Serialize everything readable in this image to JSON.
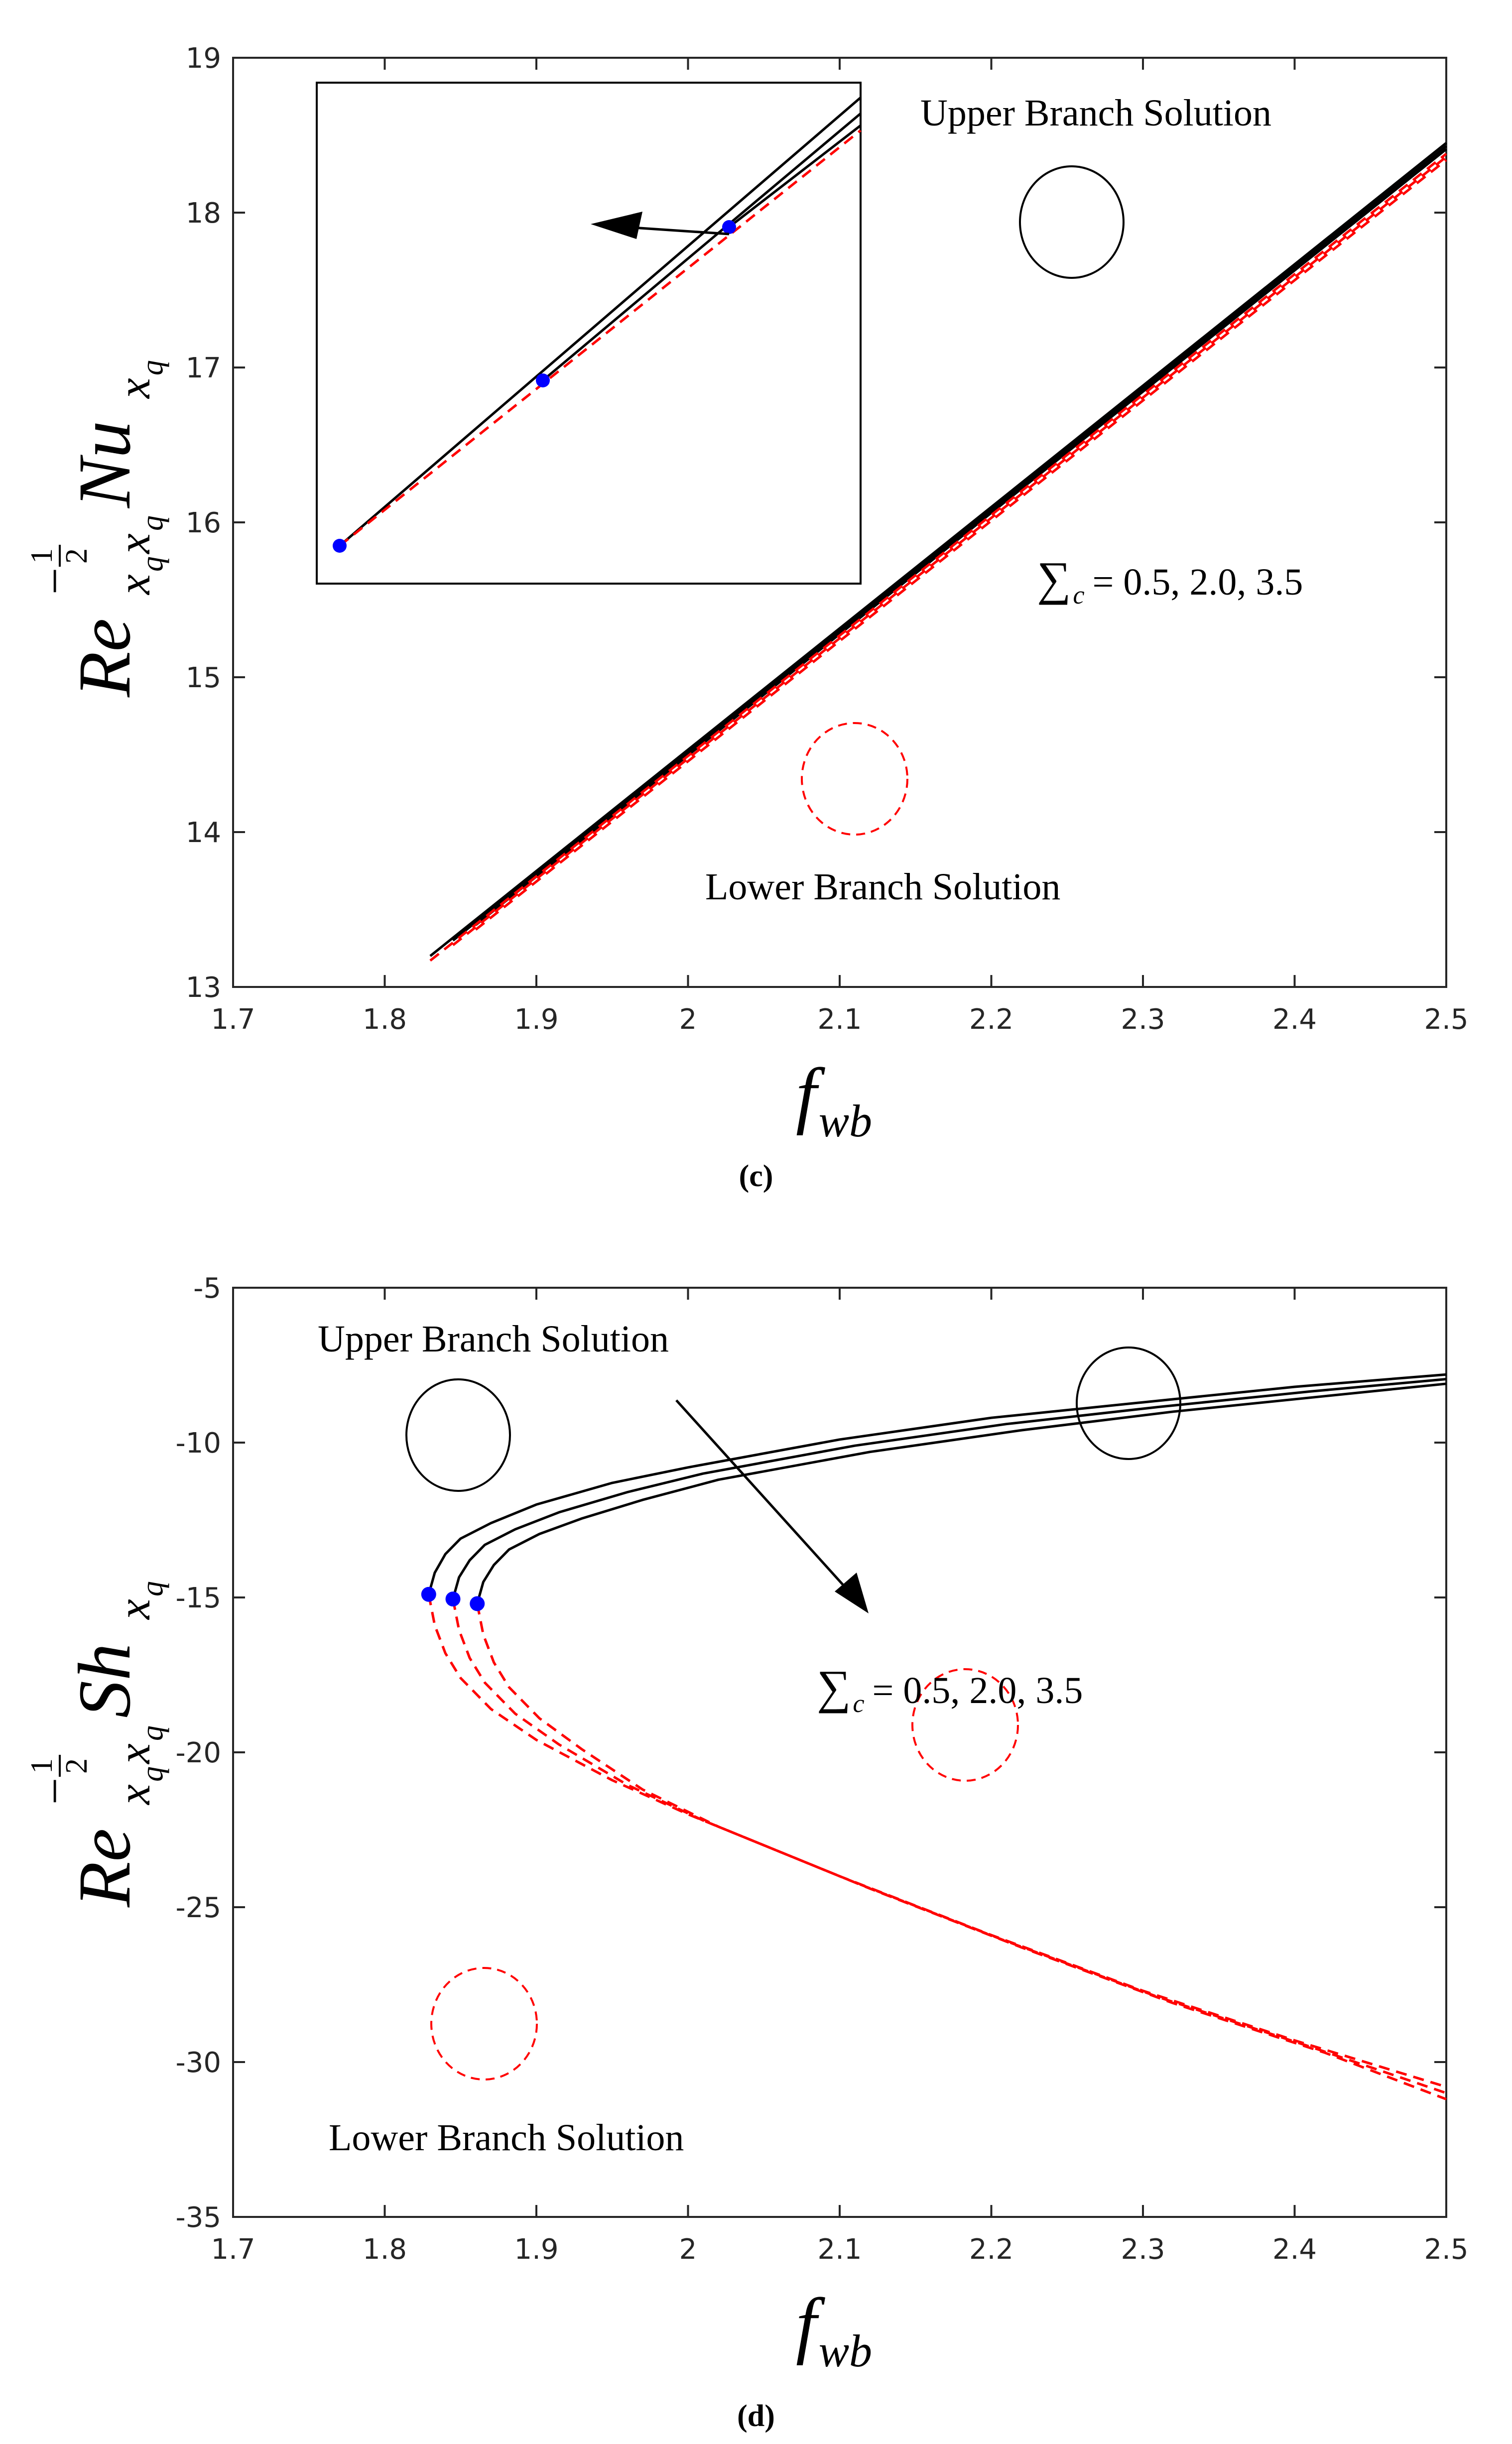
{
  "chart_data": [
    {
      "id": "c",
      "type": "line",
      "panel_label": "(c)",
      "xlabel": {
        "base": "f",
        "sub": "wb"
      },
      "ylabel": {
        "base": "Re",
        "exp": "−",
        "frac_num": "1",
        "frac_den": "2",
        "sub_a": "x",
        "sub_b": "q",
        "sub_c": "x",
        "sub_d": "q",
        "term": "Nu",
        "term_sub": "x",
        "term_sub2": "q"
      },
      "xlim": [
        1.7,
        2.5
      ],
      "ylim": [
        13,
        19
      ],
      "xticks": [
        "1.7",
        "1.8",
        "1.9",
        "2",
        "2.1",
        "2.2",
        "2.3",
        "2.4",
        "2.5"
      ],
      "yticks": [
        "13",
        "14",
        "15",
        "16",
        "17",
        "18",
        "19"
      ],
      "xtick_values": [
        1.7,
        1.8,
        1.9,
        2.0,
        2.1,
        2.2,
        2.3,
        2.4,
        2.5
      ],
      "ytick_values": [
        13,
        14,
        15,
        16,
        17,
        18,
        19
      ],
      "legend_upper": "Upper Branch Solution",
      "legend_lower": "Lower Branch Solution",
      "annotation": {
        "sum": "∑",
        "sub": "c",
        "eq": "= 0.5, 2.0, 3.5"
      },
      "series": [
        {
          "name": "Upper Σc=0.5",
          "branch": "upper",
          "x": [
            1.83,
            2.5
          ],
          "y": [
            13.2,
            18.45
          ]
        },
        {
          "name": "Upper Σc=2.0",
          "branch": "upper",
          "x": [
            1.845,
            2.5
          ],
          "y": [
            13.3,
            18.43
          ]
        },
        {
          "name": "Upper Σc=3.5",
          "branch": "upper",
          "x": [
            1.86,
            2.5
          ],
          "y": [
            13.4,
            18.41
          ]
        },
        {
          "name": "Lower Σc=0.5",
          "branch": "lower",
          "x": [
            1.83,
            2.5
          ],
          "y": [
            13.17,
            18.38
          ]
        },
        {
          "name": "Lower Σc=2.0",
          "branch": "lower",
          "x": [
            1.845,
            2.5
          ],
          "y": [
            13.27,
            18.36
          ]
        },
        {
          "name": "Lower Σc=3.5",
          "branch": "lower",
          "x": [
            1.86,
            2.5
          ],
          "y": [
            13.37,
            18.34
          ]
        }
      ]
    },
    {
      "id": "d",
      "type": "line",
      "panel_label": "(d)",
      "xlabel": {
        "base": "f",
        "sub": "wb"
      },
      "ylabel": {
        "base": "Re",
        "exp": "−",
        "frac_num": "1",
        "frac_den": "2",
        "sub_a": "x",
        "sub_b": "q",
        "sub_c": "x",
        "sub_d": "q",
        "term": "Sh",
        "term_sub": "x",
        "term_sub2": "q"
      },
      "xlim": [
        1.7,
        2.5
      ],
      "ylim": [
        -35,
        -5
      ],
      "xticks": [
        "1.7",
        "1.8",
        "1.9",
        "2",
        "2.1",
        "2.2",
        "2.3",
        "2.4",
        "2.5"
      ],
      "yticks": [
        "-35",
        "-30",
        "-25",
        "-20",
        "-15",
        "-10",
        "-5"
      ],
      "xtick_values": [
        1.7,
        1.8,
        1.9,
        2.0,
        2.1,
        2.2,
        2.3,
        2.4,
        2.5
      ],
      "ytick_values": [
        -35,
        -30,
        -25,
        -20,
        -15,
        -10,
        -5
      ],
      "legend_upper": "Upper Branch Solution",
      "legend_lower": "Lower Branch Solution",
      "annotation": {
        "sum": "∑",
        "sub": "c",
        "eq": "= 0.5, 2.0, 3.5"
      },
      "series": [
        {
          "name": "Upper Σc=0.5",
          "branch": "upper",
          "x": [
            1.829,
            1.833,
            1.84,
            1.85,
            1.87,
            1.9,
            1.95,
            2.0,
            2.1,
            2.2,
            2.3,
            2.4,
            2.5
          ],
          "y": [
            -14.9,
            -14.2,
            -13.6,
            -13.1,
            -12.6,
            -12.0,
            -11.3,
            -10.8,
            -9.9,
            -9.2,
            -8.7,
            -8.2,
            -7.8
          ]
        },
        {
          "name": "Upper Σc=2.0",
          "branch": "upper",
          "x": [
            1.845,
            1.849,
            1.856,
            1.866,
            1.886,
            1.915,
            1.96,
            2.01,
            2.11,
            2.21,
            2.31,
            2.41,
            2.5
          ],
          "y": [
            -15.05,
            -14.35,
            -13.8,
            -13.3,
            -12.8,
            -12.25,
            -11.6,
            -11.0,
            -10.1,
            -9.4,
            -8.85,
            -8.35,
            -7.95
          ]
        },
        {
          "name": "Upper Σc=3.5",
          "branch": "upper",
          "x": [
            1.861,
            1.865,
            1.872,
            1.882,
            1.902,
            1.93,
            1.97,
            2.02,
            2.12,
            2.22,
            2.32,
            2.42,
            2.5
          ],
          "y": [
            -15.2,
            -14.5,
            -13.95,
            -13.45,
            -12.95,
            -12.45,
            -11.85,
            -11.2,
            -10.3,
            -9.6,
            -9.0,
            -8.5,
            -8.1
          ]
        },
        {
          "name": "Lower Σc=0.5",
          "branch": "lower",
          "x": [
            1.829,
            1.833,
            1.84,
            1.85,
            1.87,
            1.9,
            1.95,
            2.0,
            2.1,
            2.2,
            2.3,
            2.4,
            2.5
          ],
          "y": [
            -14.9,
            -15.9,
            -16.8,
            -17.6,
            -18.6,
            -19.6,
            -20.9,
            -22.0,
            -24.0,
            -25.9,
            -27.7,
            -29.3,
            -30.8
          ]
        },
        {
          "name": "Lower Σc=2.0",
          "branch": "lower",
          "x": [
            1.845,
            1.849,
            1.856,
            1.866,
            1.886,
            1.915,
            1.96,
            2.01,
            2.11,
            2.21,
            2.31,
            2.41,
            2.5
          ],
          "y": [
            -15.05,
            -16.05,
            -16.95,
            -17.75,
            -18.75,
            -19.75,
            -21.05,
            -22.2,
            -24.2,
            -26.1,
            -27.9,
            -29.5,
            -31.0
          ]
        },
        {
          "name": "Lower Σc=3.5",
          "branch": "lower",
          "x": [
            1.861,
            1.865,
            1.872,
            1.882,
            1.902,
            1.93,
            1.97,
            2.02,
            2.12,
            2.22,
            2.32,
            2.42,
            2.5
          ],
          "y": [
            -15.2,
            -16.2,
            -17.1,
            -17.9,
            -18.9,
            -19.9,
            -21.2,
            -22.4,
            -24.4,
            -26.3,
            -28.1,
            -29.7,
            -31.2
          ]
        }
      ],
      "critical_points": {
        "x": [
          1.829,
          1.845,
          1.861
        ],
        "y": [
          -14.9,
          -15.05,
          -15.2
        ]
      }
    }
  ],
  "inset_c": {
    "critical_points": {
      "x": [
        1.829,
        1.845,
        1.861
      ],
      "y": [
        13.2,
        13.3,
        13.4
      ]
    }
  },
  "colors": {
    "upper": "#000000",
    "lower": "#ff0000",
    "point": "#0000ff",
    "axis": "#262626"
  }
}
